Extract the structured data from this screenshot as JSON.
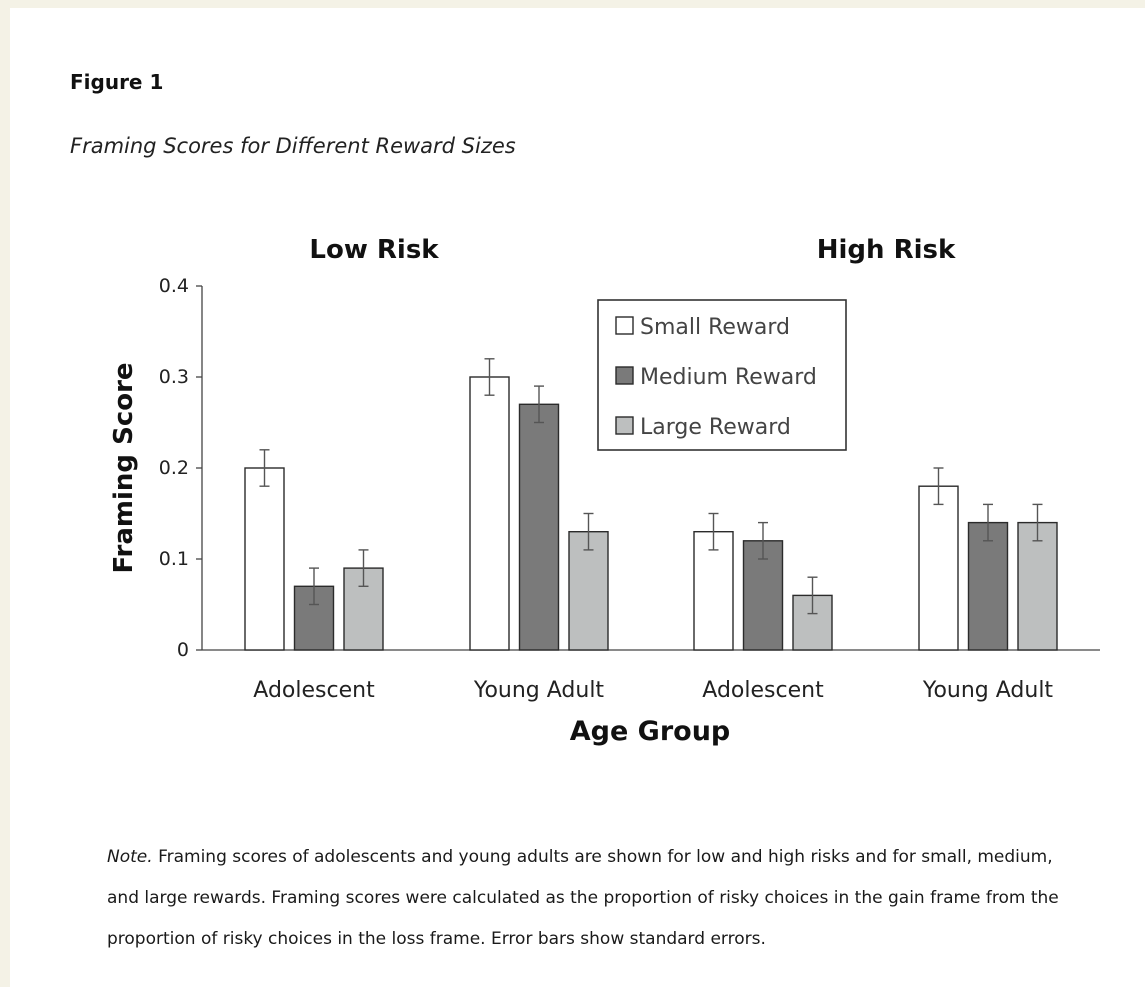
{
  "figure": {
    "number": "Figure 1",
    "caption": "Framing Scores for Different Reward Sizes"
  },
  "chart_data": {
    "type": "bar",
    "ylabel": "Framing Score",
    "xlabel": "Age Group",
    "ylim": [
      0,
      0.4
    ],
    "yticks": [
      "0",
      "0.1",
      "0.2",
      "0.3",
      "0.4"
    ],
    "grid": false,
    "legend_position": "top-right",
    "panels": [
      {
        "title": "Low Risk",
        "categories": [
          "Adolescent",
          "Young Adult"
        ]
      },
      {
        "title": "High Risk",
        "categories": [
          "Adolescent",
          "Young Adult"
        ]
      }
    ],
    "categories": [
      "Adolescent",
      "Young Adult",
      "Adolescent",
      "Young Adult"
    ],
    "series": [
      {
        "name": "Small Reward",
        "color": "#ffffff",
        "values": [
          0.2,
          0.3,
          0.13,
          0.18
        ],
        "errors": [
          0.02,
          0.02,
          0.02,
          0.02
        ]
      },
      {
        "name": "Medium Reward",
        "color": "#7a7a7a",
        "values": [
          0.07,
          0.27,
          0.12,
          0.14
        ],
        "errors": [
          0.02,
          0.02,
          0.02,
          0.02
        ]
      },
      {
        "name": "Large Reward",
        "color": "#bdbfbf",
        "values": [
          0.09,
          0.13,
          0.06,
          0.14
        ],
        "errors": [
          0.02,
          0.02,
          0.02,
          0.02
        ]
      }
    ]
  },
  "note": {
    "label": "Note.",
    "text": "Framing scores of adolescents and young adults are shown for low and high risks and for small, medium, and large rewards. Framing scores were calculated as the proportion of risky choices in the gain frame from the proportion of risky choices in the loss frame. Error bars show standard errors."
  }
}
